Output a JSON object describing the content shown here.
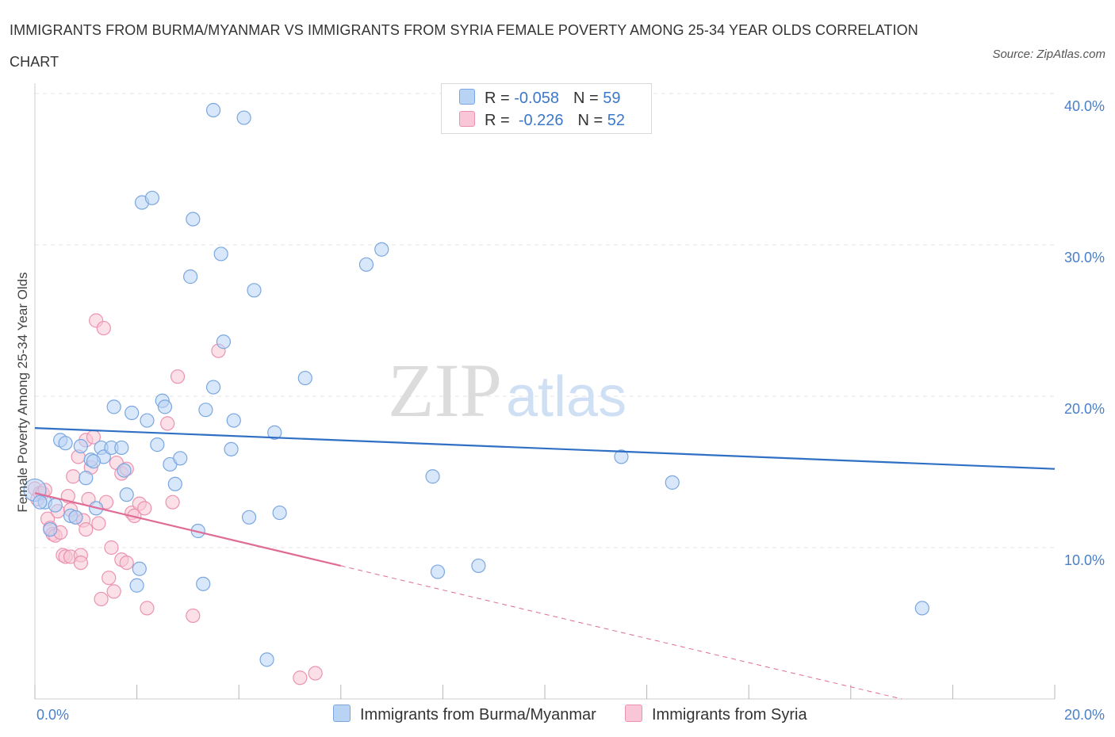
{
  "title": "IMMIGRANTS FROM BURMA/MYANMAR VS IMMIGRANTS FROM SYRIA FEMALE POVERTY AMONG 25-34 YEAR OLDS CORRELATION CHART",
  "source": "Source: ZipAtlas.com",
  "watermark": {
    "zip": "ZIP",
    "atlas": "atlas"
  },
  "legend": {
    "series1": {
      "r_label": "R =",
      "r_value": "-0.058",
      "n_label": "N =",
      "n_value": "59"
    },
    "series2": {
      "r_label": "R =",
      "r_value": "-0.226",
      "n_label": "N =",
      "n_value": "52"
    }
  },
  "colors": {
    "burma_fill": "#b9d3f5",
    "burma_stroke": "#7aa7e0",
    "burma_line": "#2f6fc4",
    "syria_fill": "#f8c6d6",
    "syria_stroke": "#ec92b0",
    "syria_line": "#e06c96",
    "tick": "#4a7fc9",
    "grid": "#e3e3e3"
  },
  "chart_data": {
    "type": "scatter",
    "title": "IMMIGRANTS FROM BURMA/MYANMAR VS IMMIGRANTS FROM SYRIA FEMALE POVERTY AMONG 25-34 YEAR OLDS CORRELATION CHART",
    "xlabel": "",
    "ylabel": "Female Poverty Among 25-34 Year Olds",
    "xlim": [
      0,
      20
    ],
    "ylim": [
      0,
      40
    ],
    "x_tick_labels": [
      "0.0%",
      "20.0%"
    ],
    "y_ticks": [
      10,
      20,
      30,
      40
    ],
    "y_tick_labels": [
      "10.0%",
      "20.0%",
      "30.0%",
      "40.0%"
    ],
    "grid": true,
    "legend_position": "top-center",
    "series": [
      {
        "name": "Immigrants from Burma/Myanmar",
        "trend": {
          "x": [
            0,
            20
          ],
          "y": [
            17.9,
            15.2
          ],
          "solid_to": 20
        },
        "points": [
          [
            0.0,
            13.8
          ],
          [
            0.2,
            13.0
          ],
          [
            0.3,
            11.2
          ],
          [
            0.5,
            17.1
          ],
          [
            0.6,
            16.9
          ],
          [
            0.7,
            12.1
          ],
          [
            0.8,
            12.0
          ],
          [
            0.9,
            16.7
          ],
          [
            1.0,
            14.6
          ],
          [
            1.1,
            15.8
          ],
          [
            1.2,
            12.6
          ],
          [
            1.3,
            16.6
          ],
          [
            1.35,
            16.0
          ],
          [
            1.5,
            16.6
          ],
          [
            1.55,
            19.3
          ],
          [
            1.7,
            16.6
          ],
          [
            1.75,
            15.1
          ],
          [
            1.8,
            13.5
          ],
          [
            1.9,
            18.9
          ],
          [
            2.05,
            8.6
          ],
          [
            2.0,
            7.5
          ],
          [
            2.2,
            18.4
          ],
          [
            2.1,
            32.8
          ],
          [
            2.3,
            33.1
          ],
          [
            2.4,
            16.8
          ],
          [
            2.5,
            19.7
          ],
          [
            2.55,
            19.3
          ],
          [
            2.65,
            15.5
          ],
          [
            2.75,
            14.2
          ],
          [
            2.85,
            15.9
          ],
          [
            3.05,
            27.9
          ],
          [
            3.1,
            31.7
          ],
          [
            3.2,
            11.1
          ],
          [
            3.3,
            7.6
          ],
          [
            3.35,
            19.1
          ],
          [
            3.5,
            20.6
          ],
          [
            3.5,
            38.9
          ],
          [
            3.65,
            29.4
          ],
          [
            3.7,
            23.6
          ],
          [
            3.85,
            16.5
          ],
          [
            3.9,
            18.4
          ],
          [
            4.1,
            38.4
          ],
          [
            4.2,
            12.0
          ],
          [
            4.3,
            27.0
          ],
          [
            4.55,
            2.6
          ],
          [
            4.7,
            17.6
          ],
          [
            4.8,
            12.3
          ],
          [
            5.3,
            21.2
          ],
          [
            6.5,
            28.7
          ],
          [
            6.8,
            29.7
          ],
          [
            7.8,
            14.7
          ],
          [
            7.9,
            8.4
          ],
          [
            8.7,
            8.8
          ],
          [
            11.5,
            16.0
          ],
          [
            12.5,
            14.3
          ],
          [
            17.4,
            6.0
          ],
          [
            0.1,
            13.0
          ],
          [
            0.4,
            12.8
          ],
          [
            1.15,
            15.7
          ]
        ]
      },
      {
        "name": "Immigrants from Syria",
        "trend": {
          "x": [
            0,
            20
          ],
          "y": [
            13.6,
            -2.4
          ],
          "solid_to": 6.0
        },
        "points": [
          [
            0.0,
            13.9
          ],
          [
            0.05,
            13.2
          ],
          [
            0.1,
            13.6
          ],
          [
            0.15,
            13.6
          ],
          [
            0.25,
            11.9
          ],
          [
            0.3,
            11.3
          ],
          [
            0.35,
            10.9
          ],
          [
            0.4,
            10.8
          ],
          [
            0.45,
            12.4
          ],
          [
            0.5,
            11.0
          ],
          [
            0.55,
            9.5
          ],
          [
            0.6,
            9.4
          ],
          [
            0.65,
            13.4
          ],
          [
            0.7,
            9.4
          ],
          [
            0.75,
            14.7
          ],
          [
            0.8,
            12.0
          ],
          [
            0.85,
            16.0
          ],
          [
            0.9,
            9.5
          ],
          [
            0.9,
            9.0
          ],
          [
            0.95,
            11.8
          ],
          [
            1.0,
            17.1
          ],
          [
            1.05,
            13.2
          ],
          [
            1.1,
            15.3
          ],
          [
            1.15,
            17.3
          ],
          [
            1.2,
            25.0
          ],
          [
            1.25,
            11.6
          ],
          [
            1.3,
            6.6
          ],
          [
            1.35,
            24.5
          ],
          [
            1.4,
            13.0
          ],
          [
            1.45,
            8.0
          ],
          [
            1.5,
            10.0
          ],
          [
            1.55,
            7.1
          ],
          [
            1.6,
            15.6
          ],
          [
            1.7,
            14.9
          ],
          [
            1.7,
            9.2
          ],
          [
            1.8,
            9.0
          ],
          [
            1.8,
            15.2
          ],
          [
            1.9,
            12.3
          ],
          [
            1.95,
            12.1
          ],
          [
            2.05,
            12.9
          ],
          [
            2.15,
            12.6
          ],
          [
            2.2,
            6.0
          ],
          [
            2.6,
            18.2
          ],
          [
            2.7,
            13.0
          ],
          [
            2.8,
            21.3
          ],
          [
            3.1,
            5.5
          ],
          [
            3.6,
            23.0
          ],
          [
            5.2,
            1.4
          ],
          [
            5.5,
            1.7
          ],
          [
            0.2,
            13.8
          ],
          [
            0.7,
            12.5
          ],
          [
            1.0,
            11.2
          ]
        ]
      }
    ]
  },
  "bottom_legend": [
    "Immigrants from Burma/Myanmar",
    "Immigrants from Syria"
  ]
}
